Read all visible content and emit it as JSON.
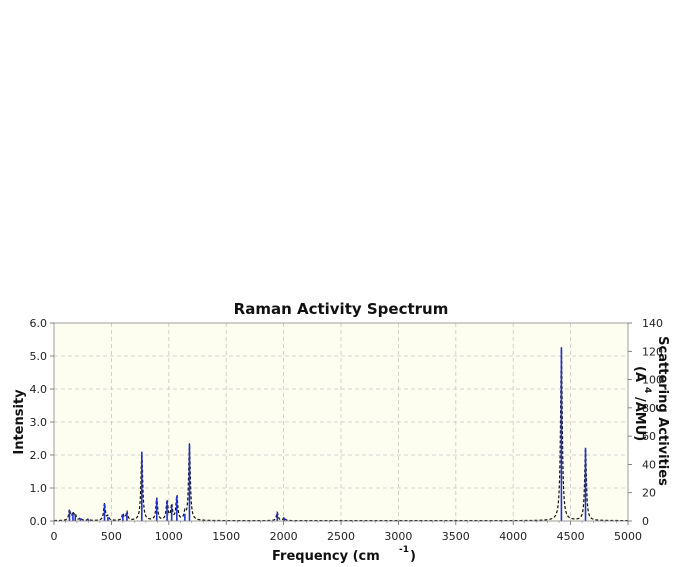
{
  "chart_data": {
    "type": "line",
    "title": "Raman Activity Spectrum",
    "xlabel": "Frequency (cm",
    "xlabel_sup": "-1",
    "xlabel_close": ")",
    "ylabel": "Intensity",
    "y2label_line1": "Scattering Activities",
    "y2label_line2": "(A",
    "y2label_sup": "4",
    "y2label_line2b": "/AMU)",
    "xlim": [
      0,
      5000
    ],
    "ylim": [
      0,
      6.0
    ],
    "y2lim": [
      0,
      140
    ],
    "grid": true,
    "x_ticks": [
      "0",
      "500",
      "1000",
      "1500",
      "2000",
      "2500",
      "3000",
      "3500",
      "4000",
      "4500",
      "5000"
    ],
    "y_ticks": [
      "0.0",
      "1.0",
      "2.0",
      "3.0",
      "4.0",
      "5.0",
      "6.0"
    ],
    "y2_ticks": [
      "0",
      "20",
      "40",
      "60",
      "80",
      "100",
      "120",
      "140"
    ],
    "colors": {
      "plot_bg": "#fdfdf0",
      "grid": "#c8c8c8",
      "stick": "#2233cc",
      "spectrum": "#111111"
    },
    "peaks": [
      {
        "x": 135,
        "y": 0.32
      },
      {
        "x": 165,
        "y": 0.22
      },
      {
        "x": 185,
        "y": 0.18
      },
      {
        "x": 230,
        "y": 0.08
      },
      {
        "x": 300,
        "y": 0.05
      },
      {
        "x": 440,
        "y": 0.52
      },
      {
        "x": 470,
        "y": 0.12
      },
      {
        "x": 600,
        "y": 0.2
      },
      {
        "x": 635,
        "y": 0.26
      },
      {
        "x": 765,
        "y": 2.1
      },
      {
        "x": 895,
        "y": 0.68
      },
      {
        "x": 985,
        "y": 0.6
      },
      {
        "x": 1025,
        "y": 0.45
      },
      {
        "x": 1070,
        "y": 0.75
      },
      {
        "x": 1140,
        "y": 0.22
      },
      {
        "x": 1180,
        "y": 2.32
      },
      {
        "x": 1945,
        "y": 0.25
      },
      {
        "x": 2005,
        "y": 0.1
      },
      {
        "x": 4420,
        "y": 5.25
      },
      {
        "x": 4630,
        "y": 2.22
      }
    ]
  }
}
